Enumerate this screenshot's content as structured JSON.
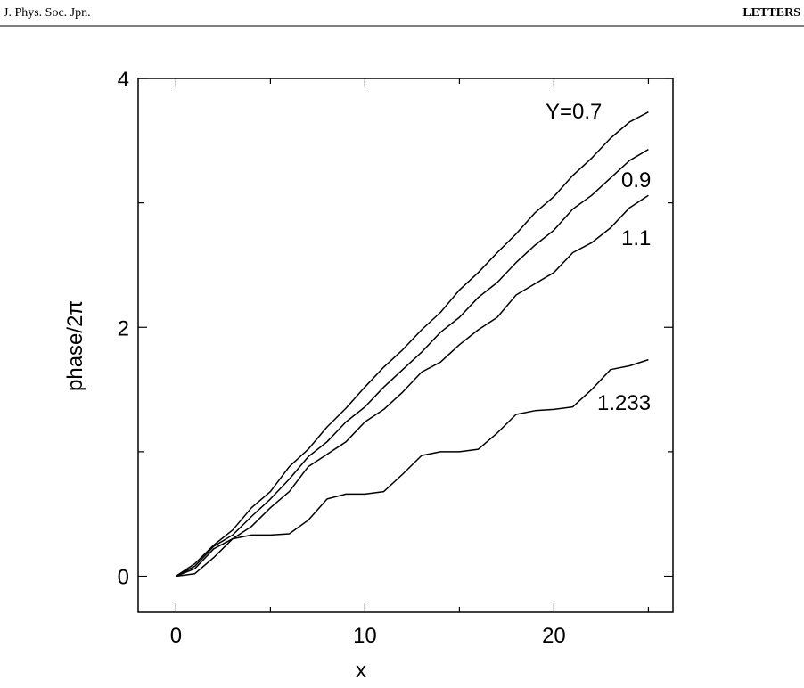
{
  "header": {
    "journal": "J. Phys. Soc. Jpn.",
    "section": "LETTERS"
  },
  "chart_data": {
    "type": "line",
    "x_label": "x",
    "y_label": "phase/2π",
    "x": [
      0,
      1,
      2,
      3,
      4,
      5,
      6,
      7,
      8,
      9,
      10,
      11,
      12,
      13,
      14,
      15,
      16,
      17,
      18,
      19,
      20,
      21,
      22,
      23,
      24,
      25
    ],
    "series": [
      {
        "name": "Y=0.7",
        "color": "#000000",
        "values": [
          0,
          0.1,
          0.25,
          0.37,
          0.55,
          0.68,
          0.88,
          1.02,
          1.2,
          1.35,
          1.52,
          1.68,
          1.82,
          1.98,
          2.12,
          2.3,
          2.44,
          2.6,
          2.75,
          2.92,
          3.05,
          3.22,
          3.36,
          3.52,
          3.65,
          3.73
        ]
      },
      {
        "name": "0.9",
        "color": "#000000",
        "values": [
          0,
          0.08,
          0.24,
          0.33,
          0.48,
          0.62,
          0.78,
          0.96,
          1.08,
          1.24,
          1.36,
          1.52,
          1.66,
          1.8,
          1.96,
          2.08,
          2.24,
          2.36,
          2.52,
          2.66,
          2.78,
          2.95,
          3.06,
          3.2,
          3.34,
          3.43
        ]
      },
      {
        "name": "1.1",
        "color": "#000000",
        "values": [
          0,
          0.06,
          0.22,
          0.3,
          0.4,
          0.55,
          0.68,
          0.88,
          0.98,
          1.08,
          1.24,
          1.34,
          1.48,
          1.64,
          1.72,
          1.86,
          1.98,
          2.08,
          2.26,
          2.35,
          2.44,
          2.6,
          2.68,
          2.8,
          2.96,
          3.06
        ]
      },
      {
        "name": "1.233",
        "color": "#000000",
        "values": [
          0,
          0.02,
          0.15,
          0.3,
          0.33,
          0.33,
          0.34,
          0.45,
          0.62,
          0.66,
          0.66,
          0.68,
          0.82,
          0.97,
          1.0,
          1.0,
          1.02,
          1.15,
          1.3,
          1.33,
          1.34,
          1.36,
          1.5,
          1.66,
          1.69,
          1.74
        ]
      }
    ],
    "xlim": [
      -2,
      26.3
    ],
    "ylim": [
      -0.29,
      4
    ],
    "xticks": [
      0,
      10,
      20
    ],
    "yticks": [
      0,
      2,
      4
    ],
    "xminorticks": [
      5,
      15,
      25
    ],
    "yminorticks": [
      1,
      3
    ]
  }
}
